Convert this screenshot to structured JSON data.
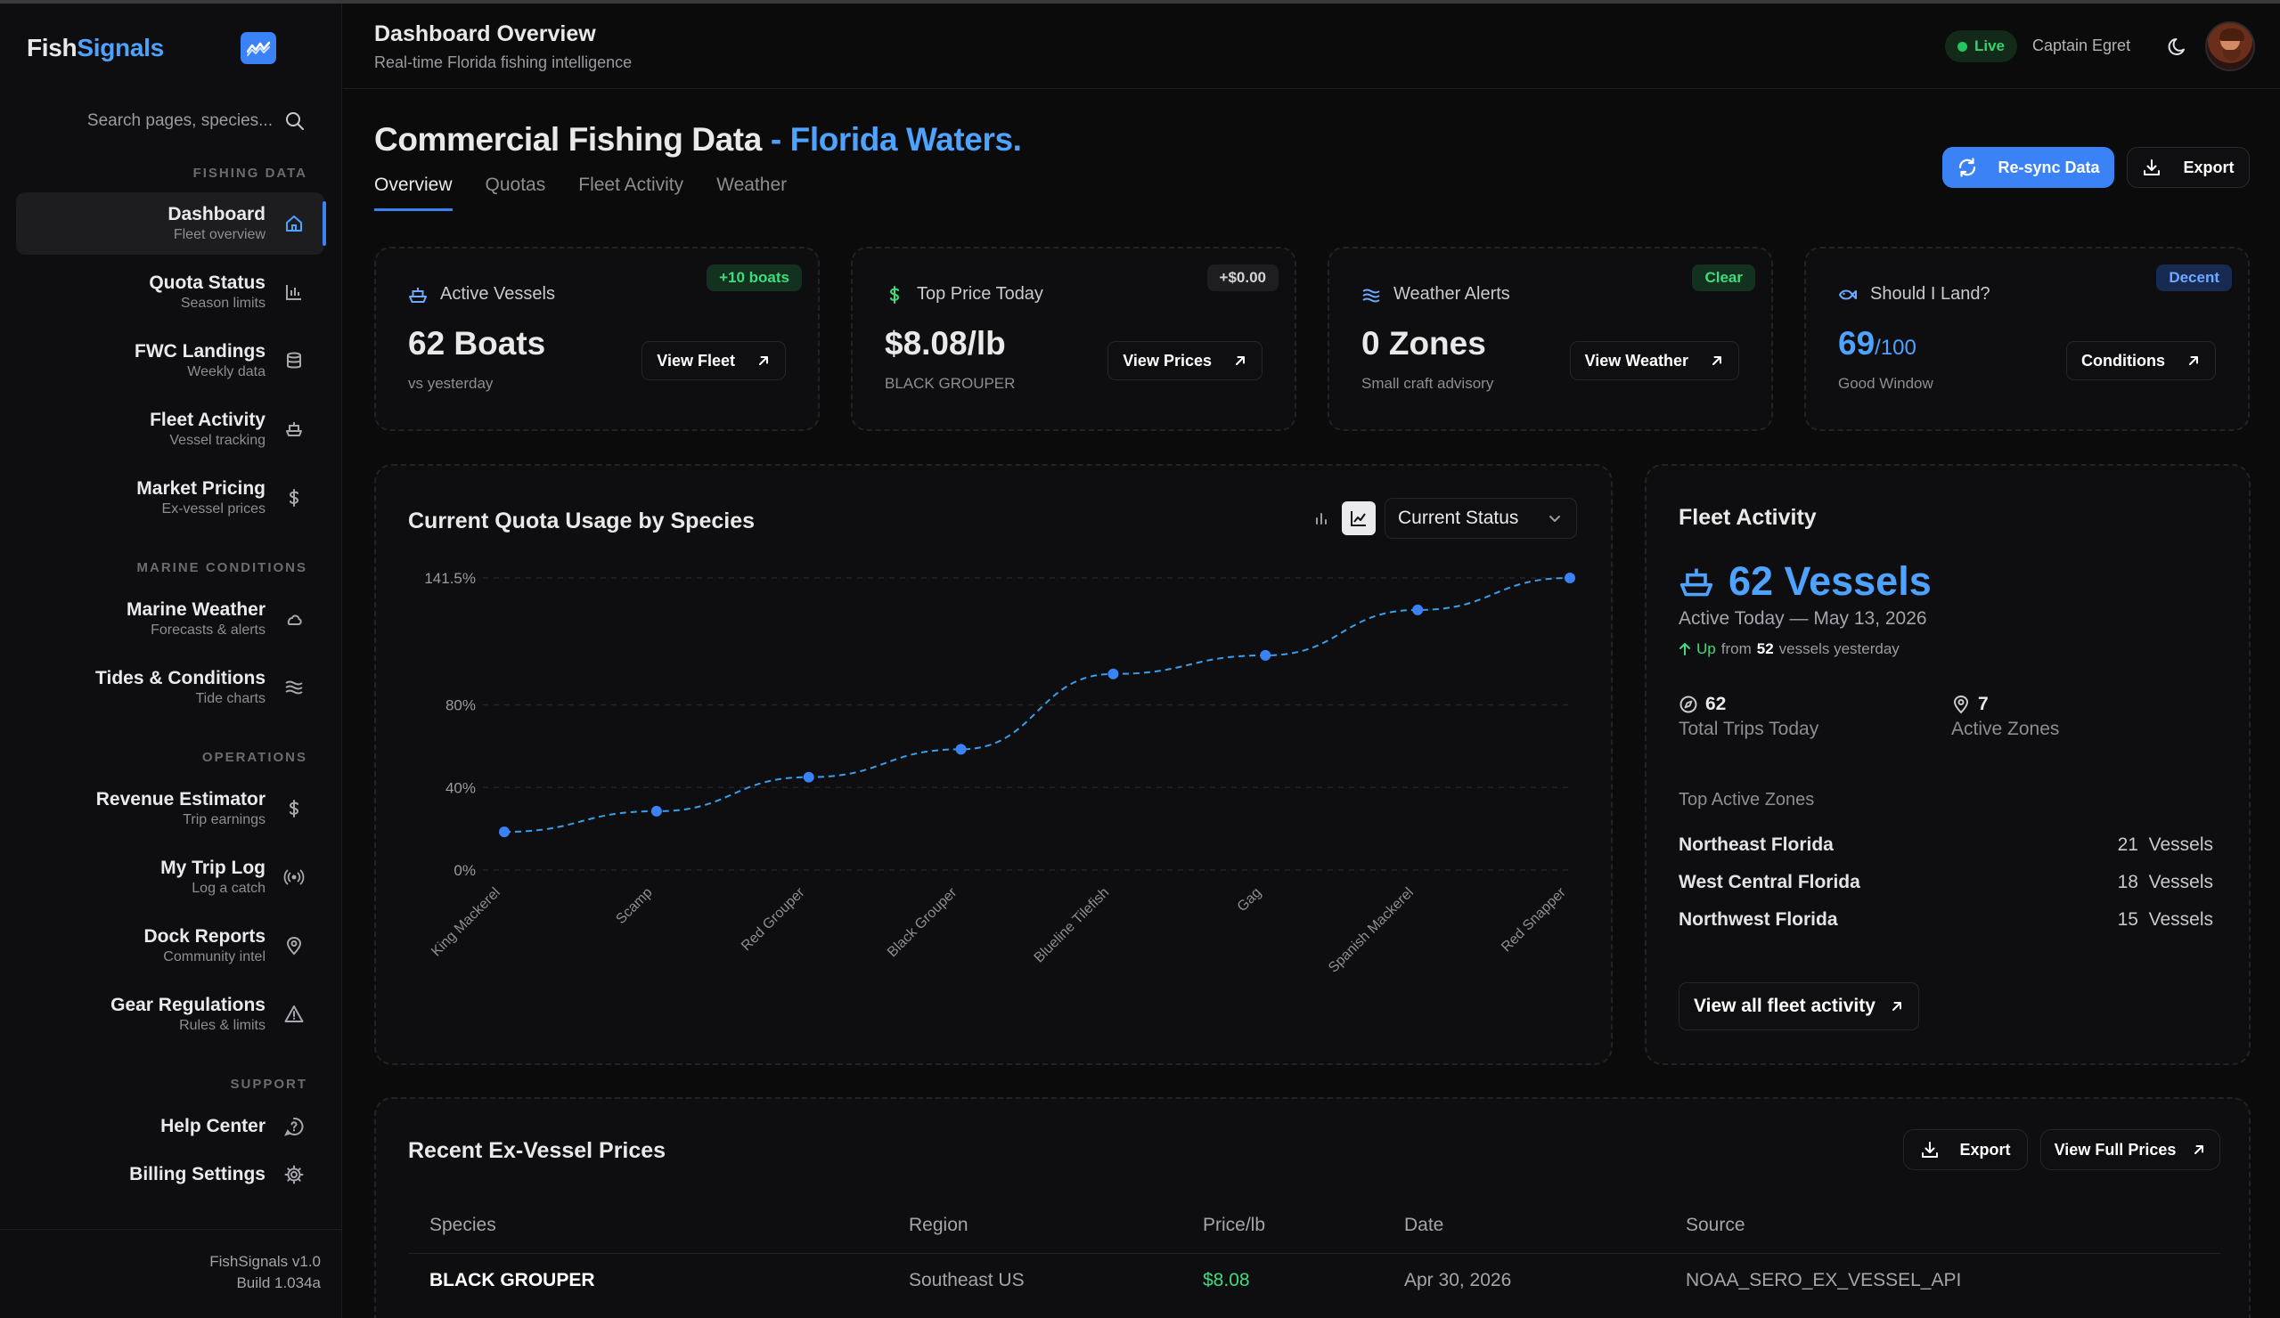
{
  "sidebar": {
    "brand_part1": "Fish",
    "brand_part2": "Signals",
    "search_placeholder": "Search pages, species...",
    "sections": {
      "fishing": "FISHING DATA",
      "marine": "MARINE CONDITIONS",
      "operations": "OPERATIONS",
      "support": "SUPPORT"
    },
    "items": [
      {
        "title": "Dashboard",
        "sub": "Fleet overview",
        "icon": "home-icon"
      },
      {
        "title": "Quota Status",
        "sub": "Season limits",
        "icon": "bar-chart-icon"
      },
      {
        "title": "FWC Landings",
        "sub": "Weekly data",
        "icon": "database-icon"
      },
      {
        "title": "Fleet Activity",
        "sub": "Vessel tracking",
        "icon": "ship-icon"
      },
      {
        "title": "Market Pricing",
        "sub": "Ex-vessel prices",
        "icon": "dollar-icon"
      },
      {
        "title": "Marine Weather",
        "sub": "Forecasts & alerts",
        "icon": "cloud-icon"
      },
      {
        "title": "Tides & Conditions",
        "sub": "Tide charts",
        "icon": "waves-icon"
      },
      {
        "title": "Revenue Estimator",
        "sub": "Trip earnings",
        "icon": "dollar-icon"
      },
      {
        "title": "My Trip Log",
        "sub": "Log a catch",
        "icon": "radio-icon"
      },
      {
        "title": "Dock Reports",
        "sub": "Community intel",
        "icon": "map-pin-icon"
      },
      {
        "title": "Gear Regulations",
        "sub": "Rules & limits",
        "icon": "warning-icon"
      },
      {
        "title": "Help Center",
        "sub": "",
        "icon": "help-icon"
      },
      {
        "title": "Billing Settings",
        "sub": "",
        "icon": "gear-icon"
      }
    ],
    "footer_version": "FishSignals v1.0",
    "footer_build": "Build 1.034a"
  },
  "header": {
    "title": "Dashboard Overview",
    "subtitle": "Real-time Florida fishing intelligence",
    "live_label": "Live",
    "user_name": "Captain Egret"
  },
  "main": {
    "title_main": "Commercial Fishing Data",
    "title_accent": "- Florida Waters.",
    "tabs": [
      "Overview",
      "Quotas",
      "Fleet Activity",
      "Weather"
    ],
    "resync_label": "Re-sync Data",
    "export_label": "Export"
  },
  "cards": [
    {
      "label": "Active Vessels",
      "badge": "+10 boats",
      "value": "62 Boats",
      "sub": "vs yesterday",
      "button": "View Fleet",
      "icon": "ship-icon"
    },
    {
      "label": "Top Price Today",
      "badge": "+$0.00",
      "value": "$8.08/lb",
      "sub": "BLACK GROUPER",
      "button": "View Prices",
      "icon": "dollar-icon"
    },
    {
      "label": "Weather Alerts",
      "badge": "Clear",
      "value": "0 Zones",
      "sub": "Small craft advisory",
      "button": "View Weather",
      "icon": "wind-icon"
    },
    {
      "label": "Should I Land?",
      "badge": "Decent",
      "value": "69",
      "value_suffix": "/100",
      "sub": "Good Window",
      "button": "Conditions",
      "icon": "fish-icon"
    }
  ],
  "chart_panel": {
    "title": "Current Quota Usage by Species",
    "select_value": "Current Status"
  },
  "chart_data": {
    "type": "line",
    "categories": [
      "King Mackerel",
      "Scamp",
      "Red Grouper",
      "Black Grouper",
      "Blueline Tilefish",
      "Gag",
      "Spanish Mackerel",
      "Red Snapper"
    ],
    "values": [
      18.5,
      28.5,
      45,
      58.5,
      95,
      104,
      126,
      141.5
    ],
    "yticks": [
      "0%",
      "40%",
      "80%",
      "141.5%"
    ],
    "ytick_values": [
      0,
      40,
      80,
      141.5
    ],
    "ylim": [
      0,
      141.5
    ],
    "grid": true,
    "line_color": "#3b9ee8",
    "point_color": "#3b82f6"
  },
  "fleet": {
    "title": "Fleet Activity",
    "big": "62 Vessels",
    "date": "Active Today — May 13, 2026",
    "up_label": "Up",
    "up_from": "from",
    "up_count": "52",
    "up_suffix": "vessels yesterday",
    "trips_value": "62",
    "trips_label": "Total Trips Today",
    "zones_value": "7",
    "zones_label": "Active Zones",
    "zones_title": "Top Active Zones",
    "zones": [
      {
        "name": "Northeast Florida",
        "count": "21  Vessels"
      },
      {
        "name": "West Central Florida",
        "count": "18  Vessels"
      },
      {
        "name": "Northwest Florida",
        "count": "15  Vessels"
      }
    ],
    "view_all": "View all fleet activity"
  },
  "prices": {
    "title": "Recent Ex-Vessel Prices",
    "export_label": "Export",
    "view_full": "View Full Prices",
    "columns": [
      "Species",
      "Region",
      "Price/lb",
      "Date",
      "Source"
    ],
    "rows": [
      [
        "BLACK GROUPER",
        "Southeast US",
        "$8.08",
        "Apr 30, 2026",
        "NOAA_SERO_EX_VESSEL_API"
      ]
    ]
  },
  "colors": {
    "accent": "#3b82f6",
    "accent_text": "#4da3ff",
    "good": "#3ddc7e"
  }
}
